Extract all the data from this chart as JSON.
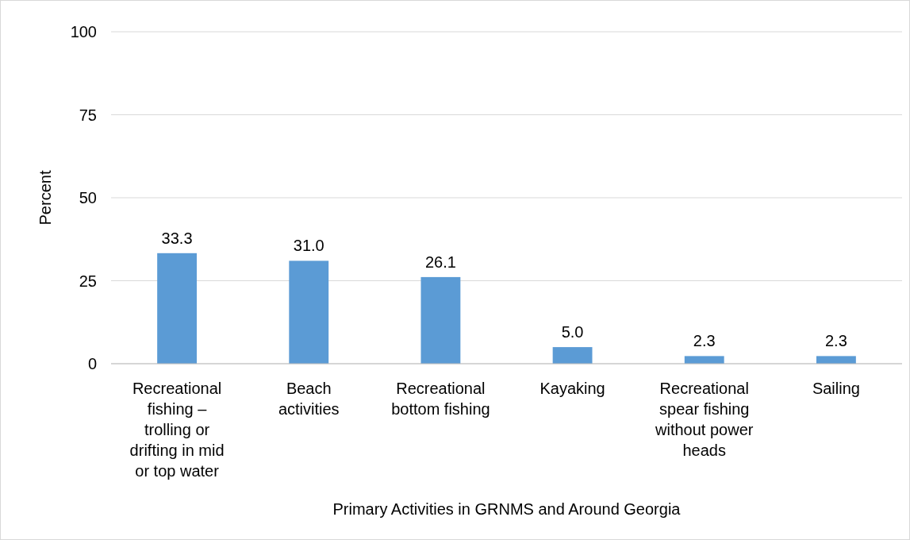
{
  "chart_data": {
    "type": "bar",
    "xlabel": "Primary Activities in GRNMS and Around Georgia",
    "ylabel": "Percent",
    "categories": [
      "Recreational fishing – trolling or drifting in mid or top water",
      "Beach activities",
      "Recreational bottom fishing",
      "Kayaking",
      "Recreational spear fishing without power heads",
      "Sailing"
    ],
    "values": [
      33.3,
      31.0,
      26.1,
      5.0,
      2.3,
      2.3
    ],
    "value_labels": [
      "33.3",
      "31.0",
      "26.1",
      "5.0",
      "2.3",
      "2.3"
    ],
    "color": "#5b9bd5",
    "ylim": [
      0,
      100
    ],
    "yticks": [
      0,
      25,
      50,
      75,
      100
    ],
    "grid": "y"
  }
}
